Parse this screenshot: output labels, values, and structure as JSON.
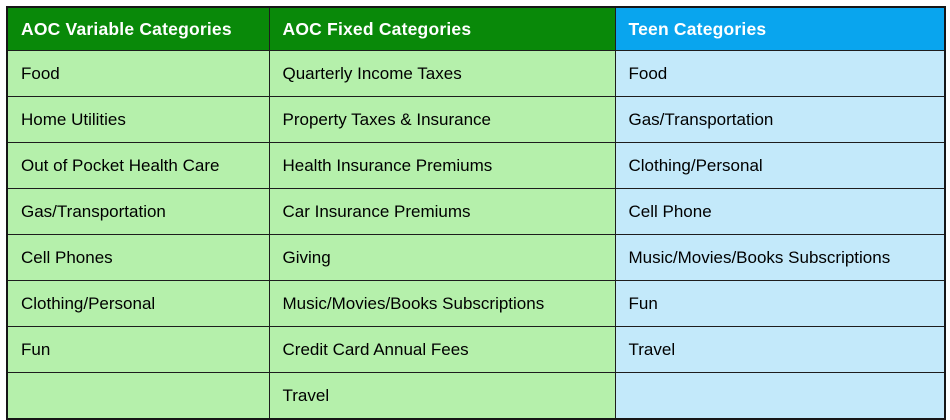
{
  "page": {
    "background_color": "#ffffff",
    "border_color": "#1d1d1d"
  },
  "table": {
    "columns": [
      {
        "header": "AOC Variable Categories",
        "header_bg": "#098909",
        "header_text_color": "#ffffff",
        "cell_bg": "#b5f0ab",
        "rows": [
          "Food",
          "Home Utilities",
          "Out of Pocket Health Care",
          "Gas/Transportation",
          "Cell Phones",
          "Clothing/Personal",
          "Fun",
          ""
        ]
      },
      {
        "header": "AOC Fixed Categories",
        "header_bg": "#098909",
        "header_text_color": "#ffffff",
        "cell_bg": "#b5f0ab",
        "rows": [
          "Quarterly Income Taxes",
          "Property Taxes & Insurance",
          "Health Insurance Premiums",
          "Car Insurance Premiums",
          "Giving",
          "Music/Movies/Books Subscriptions",
          "Credit Card Annual Fees",
          "Travel"
        ]
      },
      {
        "header": "Teen Categories",
        "header_bg": "#09a5ee",
        "header_text_color": "#ffffff",
        "cell_bg": "#c3e9fa",
        "rows": [
          "Food",
          "Gas/Transportation",
          "Clothing/Personal",
          "Cell Phone",
          "Music/Movies/Books Subscriptions",
          "Fun",
          "Travel",
          ""
        ]
      }
    ]
  }
}
